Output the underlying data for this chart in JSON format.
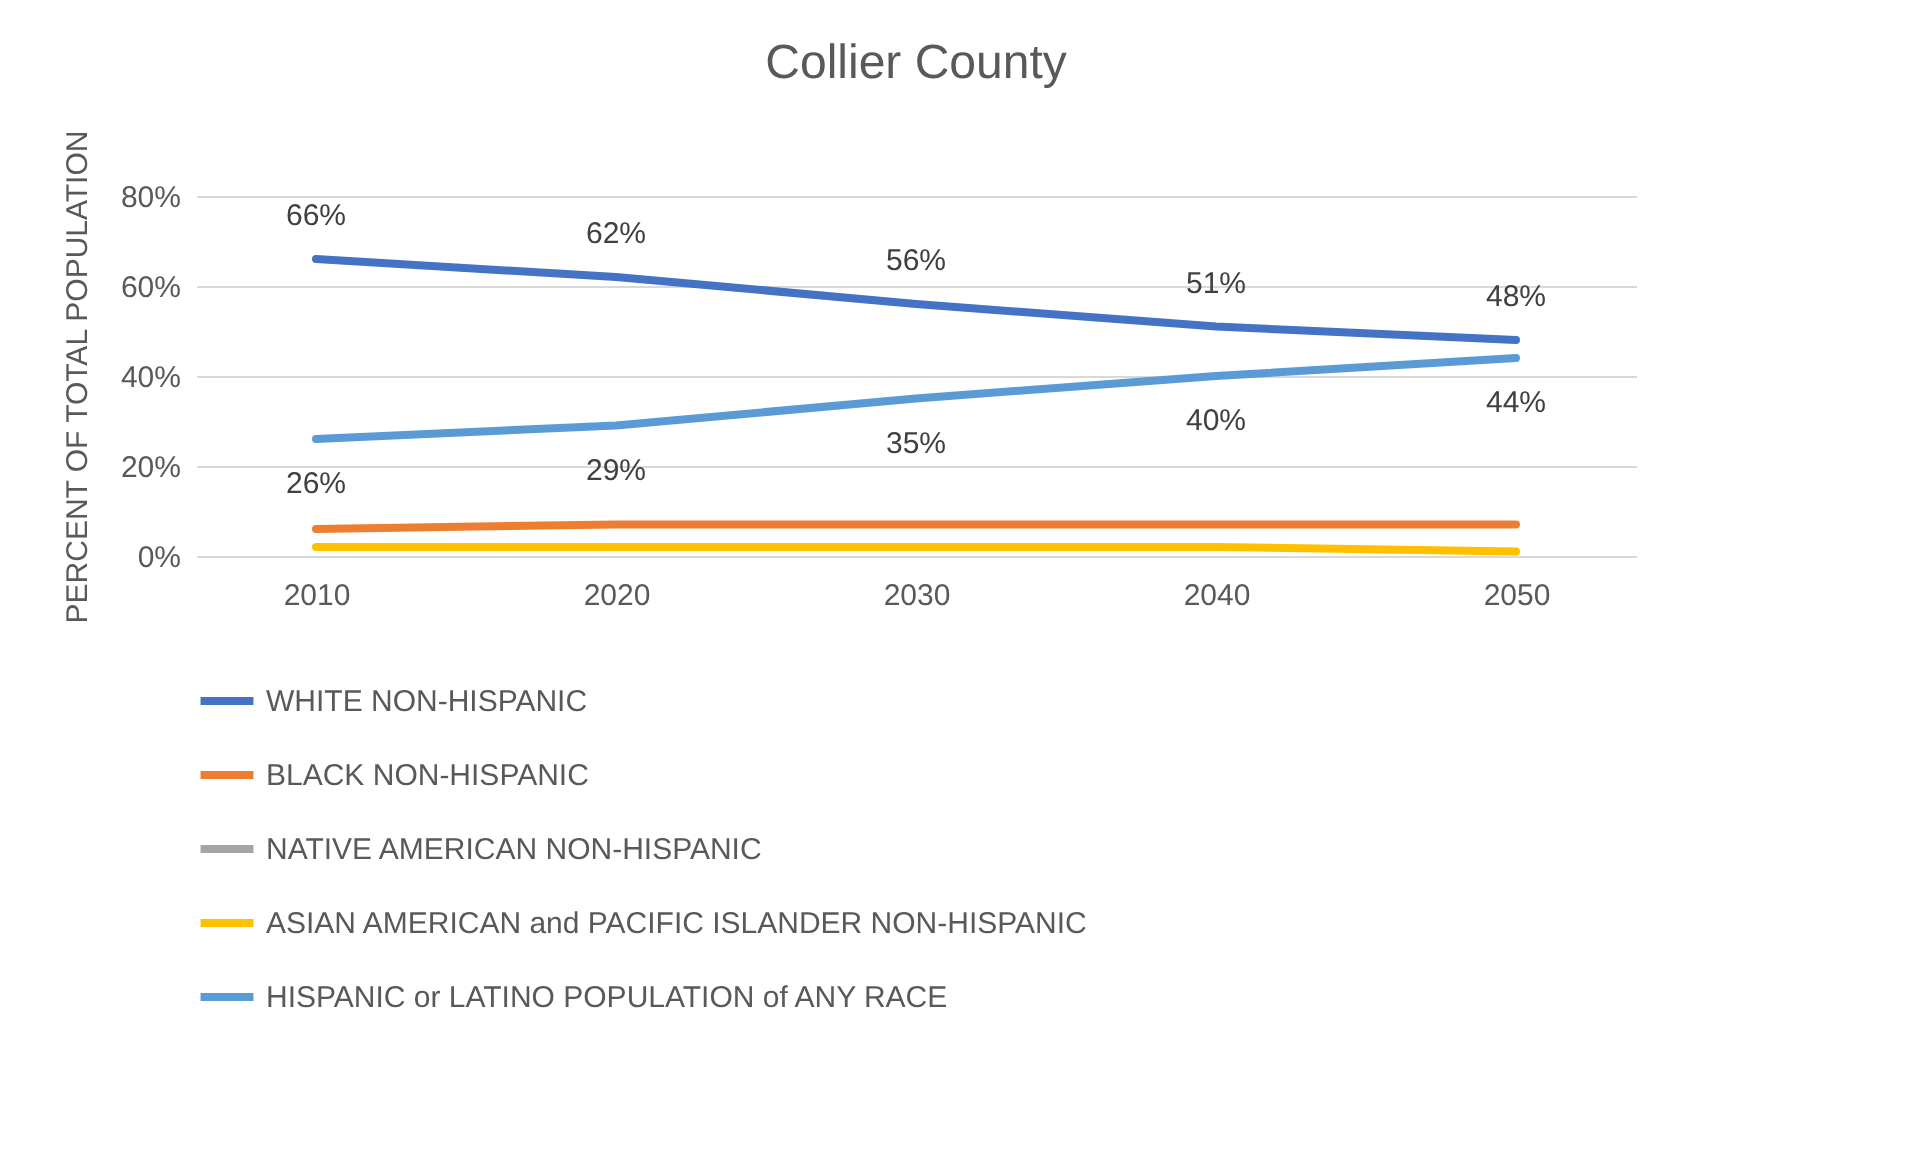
{
  "chart_data": {
    "type": "line",
    "title": "Collier County",
    "ylabel": "PERCENT OF TOTAL POPULATION",
    "categories": [
      "2010",
      "2020",
      "2030",
      "2040",
      "2050"
    ],
    "series": [
      {
        "name": "WHITE NON-HISPANIC",
        "color": "#4472c4",
        "values": [
          66,
          62,
          56,
          51,
          48
        ],
        "value_labels": [
          "66%",
          "62%",
          "56%",
          "51%",
          "48%"
        ]
      },
      {
        "name": "BLACK NON-HISPANIC",
        "color": "#ed7d31",
        "values": [
          6,
          7,
          7,
          7,
          7
        ]
      },
      {
        "name": "NATIVE AMERICAN NON-HISPANIC",
        "color": "#a5a5a5",
        "values": [
          null,
          null,
          null,
          null,
          null
        ]
      },
      {
        "name": "ASIAN AMERICAN and PACIFIC ISLANDER NON-HISPANIC",
        "color": "#ffc000",
        "values": [
          2,
          2,
          2,
          2,
          1
        ]
      },
      {
        "name": "HISPANIC or LATINO POPULATION of ANY RACE",
        "color": "#5b9bd5",
        "values": [
          26,
          29,
          35,
          40,
          44
        ],
        "value_labels": [
          "26%",
          "29%",
          "35%",
          "40%",
          "44%"
        ]
      }
    ],
    "ylim": [
      0,
      80
    ],
    "yticks": [
      {
        "value": 0,
        "label": "0%"
      },
      {
        "value": 20,
        "label": "20%"
      },
      {
        "value": 40,
        "label": "40%"
      },
      {
        "value": 60,
        "label": "60%"
      },
      {
        "value": 80,
        "label": "80%"
      }
    ],
    "grid": "y",
    "legend": "bottom"
  }
}
